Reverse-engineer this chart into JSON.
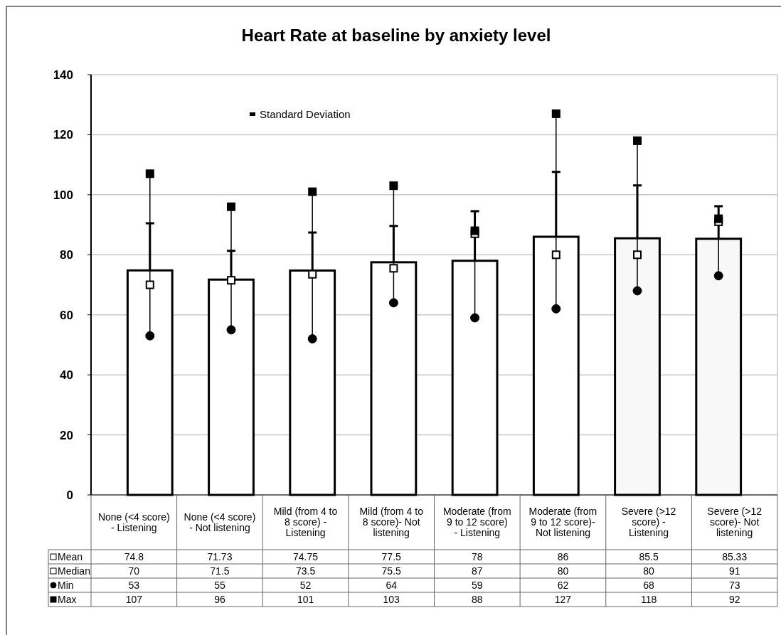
{
  "chart_data": {
    "type": "bar",
    "title": "Heart Rate at baseline by anxiety level",
    "categories": [
      "None (<4 score) - Listening",
      "None (<4 score) - Not listening",
      "Mild (from 4 to 8 score)  - Listening",
      "Mild (from 4 to 8 score)- Not listening",
      "Moderate (from 9 to 12 score)  - Listening",
      "Moderate (from 9 to 12 score)- Not listening",
      "Severe (>12 score)  - Listening",
      "Severe (>12 score)- Not listening"
    ],
    "series": [
      {
        "name": "Mean",
        "color": "#ffffff",
        "colors": [
          "#ffffff",
          "#ffffff",
          "#ffffff",
          "#ffffff",
          "#ffffff",
          "#ffffff",
          "#f8f8f8",
          "#f8f8f8"
        ],
        "values": [
          74.8,
          71.73,
          74.75,
          77.5,
          78,
          86,
          85.5,
          85.33
        ],
        "errors": [
          [
            74.8,
            90.5
          ],
          [
            71.73,
            81.3
          ],
          [
            74.75,
            87.4
          ],
          [
            77.5,
            89.6
          ],
          [
            78,
            94.5
          ],
          [
            86,
            107.6
          ],
          [
            85.5,
            103.1
          ],
          [
            85.33,
            96.2
          ]
        ]
      },
      {
        "name": "Median",
        "type": "scatter",
        "marker": "square",
        "color": "#ffffff",
        "values": [
          70,
          71.5,
          73.5,
          75.5,
          87,
          80,
          80,
          91
        ]
      },
      {
        "name": "Min",
        "type": "scatter",
        "marker": "circle",
        "color": "#000000",
        "values": [
          53,
          55,
          52,
          64,
          59,
          62,
          68,
          73
        ]
      },
      {
        "name": "Max",
        "type": "scatter",
        "marker": "square",
        "color": "#000000",
        "values": [
          107,
          96,
          101,
          103,
          88,
          127,
          118,
          92
        ]
      }
    ],
    "ylim": [
      0,
      140
    ],
    "yticks": [
      0,
      20,
      40,
      60,
      80,
      100,
      120,
      140
    ],
    "grid": "y",
    "data_labels": true,
    "legend": "bottom",
    "annotations": [
      "Standard Deviation"
    ]
  }
}
